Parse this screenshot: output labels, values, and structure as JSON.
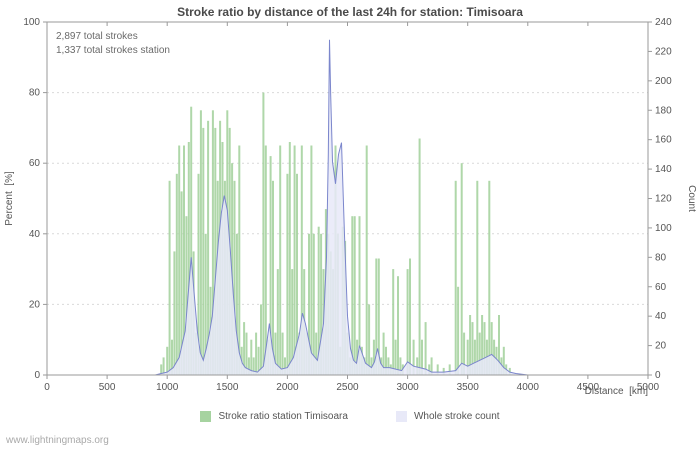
{
  "title": "Stroke ratio by distance of the last 24h for station: Timisoara",
  "annotations": {
    "total_strokes": "2,897 total strokes",
    "total_strokes_station": "1,337 total strokes station"
  },
  "watermark": "www.lightningmaps.org",
  "colors": {
    "bar": "#a6d3a0",
    "line": "#7b86cc",
    "line_fill": "#e8e9f8",
    "grid": "#d9d9d9",
    "axis": "#9a9a9a",
    "text": "#555555"
  },
  "legend": [
    {
      "label": "Stroke ratio station Timisoara",
      "color": "#a6d3a0"
    },
    {
      "label": "Whole stroke count",
      "color": "#e8e9f8"
    }
  ],
  "chart_data": {
    "type": "bar+line",
    "x_label": "Distance  [km]",
    "x_range": [
      0,
      5000
    ],
    "x_ticks": [
      0,
      500,
      1000,
      1500,
      2000,
      2500,
      3000,
      3500,
      4000,
      4500,
      5000
    ],
    "y_left_label": "Percent  [%]",
    "y_left_range": [
      0,
      100
    ],
    "y_left_ticks": [
      0,
      20,
      40,
      60,
      80,
      100
    ],
    "y_right_label": "Count",
    "y_right_range": [
      0,
      240
    ],
    "y_right_ticks": [
      0,
      20,
      40,
      60,
      80,
      100,
      120,
      140,
      160,
      180,
      200,
      220,
      240
    ],
    "grid": true,
    "legend_position": "bottom",
    "series": [
      {
        "name": "Stroke ratio station Timisoara",
        "type": "bar",
        "axis": "left",
        "points": [
          [
            950,
            3
          ],
          [
            970,
            5
          ],
          [
            1000,
            8
          ],
          [
            1020,
            55
          ],
          [
            1040,
            10
          ],
          [
            1060,
            35
          ],
          [
            1080,
            57
          ],
          [
            1100,
            65
          ],
          [
            1120,
            52
          ],
          [
            1140,
            65
          ],
          [
            1160,
            45
          ],
          [
            1180,
            66
          ],
          [
            1200,
            76
          ],
          [
            1220,
            35
          ],
          [
            1240,
            12
          ],
          [
            1260,
            57
          ],
          [
            1280,
            75
          ],
          [
            1300,
            70
          ],
          [
            1320,
            40
          ],
          [
            1340,
            72
          ],
          [
            1360,
            25
          ],
          [
            1380,
            75
          ],
          [
            1400,
            70
          ],
          [
            1420,
            55
          ],
          [
            1440,
            72
          ],
          [
            1460,
            66
          ],
          [
            1480,
            55
          ],
          [
            1500,
            75
          ],
          [
            1520,
            70
          ],
          [
            1540,
            60
          ],
          [
            1560,
            55
          ],
          [
            1580,
            40
          ],
          [
            1600,
            65
          ],
          [
            1620,
            8
          ],
          [
            1640,
            15
          ],
          [
            1660,
            12
          ],
          [
            1680,
            5
          ],
          [
            1700,
            10
          ],
          [
            1720,
            5
          ],
          [
            1740,
            12
          ],
          [
            1760,
            8
          ],
          [
            1780,
            20
          ],
          [
            1800,
            80
          ],
          [
            1820,
            65
          ],
          [
            1840,
            10
          ],
          [
            1860,
            62
          ],
          [
            1880,
            55
          ],
          [
            1900,
            12
          ],
          [
            1920,
            30
          ],
          [
            1940,
            65
          ],
          [
            1960,
            12
          ],
          [
            1980,
            5
          ],
          [
            2000,
            57
          ],
          [
            2020,
            66
          ],
          [
            2040,
            30
          ],
          [
            2060,
            65
          ],
          [
            2080,
            57
          ],
          [
            2100,
            12
          ],
          [
            2120,
            65
          ],
          [
            2140,
            30
          ],
          [
            2160,
            12
          ],
          [
            2180,
            40
          ],
          [
            2200,
            65
          ],
          [
            2220,
            40
          ],
          [
            2240,
            12
          ],
          [
            2260,
            42
          ],
          [
            2280,
            40
          ],
          [
            2300,
            30
          ],
          [
            2320,
            47
          ],
          [
            2340,
            40
          ],
          [
            2360,
            35
          ],
          [
            2380,
            30
          ],
          [
            2400,
            65
          ],
          [
            2420,
            40
          ],
          [
            2440,
            8
          ],
          [
            2460,
            42
          ],
          [
            2480,
            38
          ],
          [
            2500,
            12
          ],
          [
            2520,
            5
          ],
          [
            2540,
            45
          ],
          [
            2560,
            45
          ],
          [
            2580,
            10
          ],
          [
            2600,
            45
          ],
          [
            2620,
            8
          ],
          [
            2640,
            5
          ],
          [
            2660,
            65
          ],
          [
            2680,
            20
          ],
          [
            2700,
            5
          ],
          [
            2720,
            10
          ],
          [
            2740,
            33
          ],
          [
            2760,
            33
          ],
          [
            2780,
            5
          ],
          [
            2800,
            12
          ],
          [
            2820,
            8
          ],
          [
            2840,
            5
          ],
          [
            2860,
            3
          ],
          [
            2880,
            30
          ],
          [
            2900,
            10
          ],
          [
            2920,
            28
          ],
          [
            2940,
            5
          ],
          [
            2960,
            3
          ],
          [
            3000,
            30
          ],
          [
            3020,
            33
          ],
          [
            3050,
            10
          ],
          [
            3080,
            5
          ],
          [
            3100,
            67
          ],
          [
            3120,
            10
          ],
          [
            3150,
            15
          ],
          [
            3180,
            3
          ],
          [
            3200,
            5
          ],
          [
            3250,
            3
          ],
          [
            3300,
            2
          ],
          [
            3350,
            3
          ],
          [
            3400,
            55
          ],
          [
            3420,
            25
          ],
          [
            3450,
            60
          ],
          [
            3470,
            12
          ],
          [
            3500,
            10
          ],
          [
            3520,
            17
          ],
          [
            3540,
            15
          ],
          [
            3560,
            10
          ],
          [
            3580,
            55
          ],
          [
            3600,
            12
          ],
          [
            3620,
            17
          ],
          [
            3640,
            15
          ],
          [
            3660,
            10
          ],
          [
            3680,
            55
          ],
          [
            3700,
            15
          ],
          [
            3720,
            10
          ],
          [
            3740,
            8
          ],
          [
            3760,
            17
          ],
          [
            3780,
            5
          ],
          [
            3800,
            8
          ],
          [
            3820,
            3
          ],
          [
            3850,
            2
          ]
        ]
      },
      {
        "name": "Whole stroke count",
        "type": "line",
        "axis": "right",
        "points": [
          [
            0,
            0
          ],
          [
            900,
            0
          ],
          [
            950,
            1
          ],
          [
            1000,
            2
          ],
          [
            1050,
            5
          ],
          [
            1100,
            12
          ],
          [
            1150,
            30
          ],
          [
            1175,
            55
          ],
          [
            1200,
            80
          ],
          [
            1225,
            55
          ],
          [
            1250,
            30
          ],
          [
            1275,
            15
          ],
          [
            1300,
            10
          ],
          [
            1325,
            18
          ],
          [
            1350,
            28
          ],
          [
            1375,
            40
          ],
          [
            1400,
            65
          ],
          [
            1425,
            90
          ],
          [
            1450,
            110
          ],
          [
            1475,
            122
          ],
          [
            1500,
            112
          ],
          [
            1525,
            85
          ],
          [
            1550,
            55
          ],
          [
            1575,
            30
          ],
          [
            1600,
            15
          ],
          [
            1625,
            8
          ],
          [
            1650,
            5
          ],
          [
            1700,
            3
          ],
          [
            1750,
            2
          ],
          [
            1800,
            6
          ],
          [
            1825,
            20
          ],
          [
            1850,
            35
          ],
          [
            1875,
            18
          ],
          [
            1900,
            8
          ],
          [
            1950,
            4
          ],
          [
            2000,
            5
          ],
          [
            2050,
            12
          ],
          [
            2100,
            28
          ],
          [
            2125,
            42
          ],
          [
            2150,
            35
          ],
          [
            2175,
            25
          ],
          [
            2200,
            15
          ],
          [
            2250,
            10
          ],
          [
            2300,
            35
          ],
          [
            2325,
            80
          ],
          [
            2340,
            150
          ],
          [
            2350,
            228
          ],
          [
            2360,
            190
          ],
          [
            2375,
            145
          ],
          [
            2400,
            130
          ],
          [
            2425,
            150
          ],
          [
            2450,
            158
          ],
          [
            2475,
            95
          ],
          [
            2500,
            40
          ],
          [
            2525,
            18
          ],
          [
            2550,
            10
          ],
          [
            2575,
            8
          ],
          [
            2600,
            20
          ],
          [
            2625,
            14
          ],
          [
            2650,
            8
          ],
          [
            2700,
            5
          ],
          [
            2725,
            9
          ],
          [
            2750,
            18
          ],
          [
            2775,
            8
          ],
          [
            2800,
            5
          ],
          [
            2850,
            5
          ],
          [
            2900,
            4
          ],
          [
            2950,
            3
          ],
          [
            3000,
            9
          ],
          [
            3050,
            6
          ],
          [
            3100,
            5
          ],
          [
            3150,
            4
          ],
          [
            3200,
            2
          ],
          [
            3300,
            2
          ],
          [
            3400,
            3
          ],
          [
            3450,
            8
          ],
          [
            3500,
            6
          ],
          [
            3550,
            8
          ],
          [
            3600,
            10
          ],
          [
            3650,
            12
          ],
          [
            3700,
            14
          ],
          [
            3750,
            10
          ],
          [
            3800,
            5
          ],
          [
            3850,
            2
          ],
          [
            3900,
            1
          ],
          [
            4000,
            0
          ],
          [
            5000,
            0
          ]
        ]
      }
    ]
  }
}
